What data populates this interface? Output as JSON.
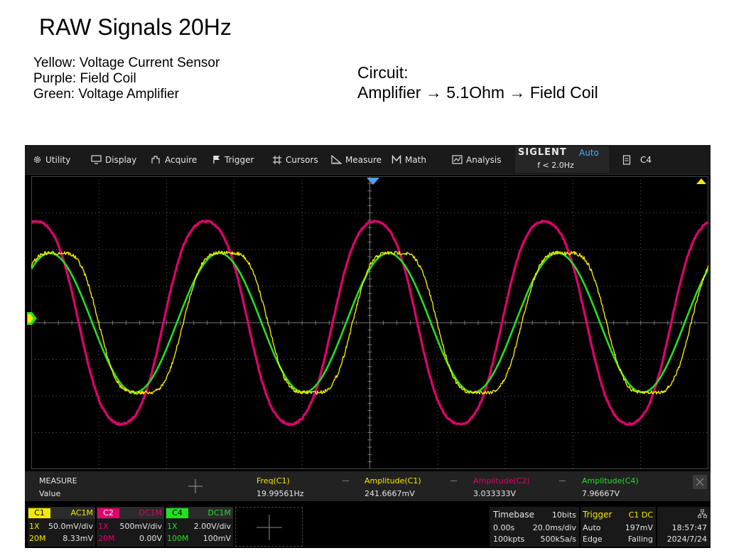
{
  "slide": {
    "title": "RAW Signals 20Hz",
    "legend": [
      "Yellow: Voltage Current Sensor",
      "Purple: Field Coil",
      "Green: Voltage Amplifier"
    ],
    "circuit_label": "Circuit:",
    "circuit_path": "Amplifier → 5.1Ohm → Field Coil"
  },
  "menu": {
    "utility": "Utility",
    "display": "Display",
    "acquire": "Acquire",
    "trigger": "Trigger",
    "cursors": "Cursors",
    "measure": "Measure",
    "math": "Math",
    "analysis": "Analysis",
    "brand": "SIGLENT",
    "mode": "Auto",
    "freq": "f < 2.0Hz",
    "channel": "C4"
  },
  "measure": {
    "header": "MEASURE",
    "value_label": "Value",
    "items": [
      {
        "name": "Freq(C1)",
        "value": "19.99561Hz",
        "color": "#f5e800"
      },
      {
        "name": "Amplitude(C1)",
        "value": "241.6667mV",
        "color": "#f5e800"
      },
      {
        "name": "Amplitude(C2)",
        "value": "3.033333V",
        "color": "#e0006e"
      },
      {
        "name": "Amplitude(C4)",
        "value": "7.96667V",
        "color": "#22e022"
      }
    ]
  },
  "channels": [
    {
      "tag": "C1",
      "coupling": "AC1M",
      "probe": "1X",
      "scale": "50.0mV/div",
      "bw": "20M",
      "offset": "8.33mV",
      "color": "#f5e800",
      "tag_text_color": "#000000"
    },
    {
      "tag": "C2",
      "coupling": "DC1M",
      "probe": "1X",
      "scale": "500mV/div",
      "bw": "20M",
      "offset": "0.00V",
      "color": "#e0006e",
      "tag_text_color": "#ffffff"
    },
    {
      "tag": "C4",
      "coupling": "DC1M",
      "probe": "1X",
      "scale": "2.00V/div",
      "bw": "100M",
      "offset": "100mV",
      "color": "#22e022",
      "tag_text_color": "#000000"
    }
  ],
  "timebase": {
    "label": "Timebase",
    "bits": "10bits",
    "delay": "0.00s",
    "scale": "20.0ms/div",
    "points": "100kpts",
    "rate": "500kSa/s"
  },
  "trigger": {
    "label": "Trigger",
    "source": "C1 DC",
    "mode": "Auto",
    "level": "197mV",
    "type": "Edge",
    "slope": "Falling"
  },
  "clock": {
    "time": "18:57:47",
    "date": "2024/7/24"
  },
  "colors": {
    "yellow": "#f5e800",
    "magenta": "#e0006e",
    "green": "#22e022",
    "trigger_marker": "#4aa3ff",
    "grid": "#555555"
  },
  "waveforms": {
    "frequency_hz": 20,
    "time_per_div_ms": 20,
    "divisions": 10,
    "c1_amplitude_pp_mV": 241.6667,
    "c2_amplitude_pp_V": 3.033333,
    "c4_amplitude_pp_V": 7.96667
  }
}
